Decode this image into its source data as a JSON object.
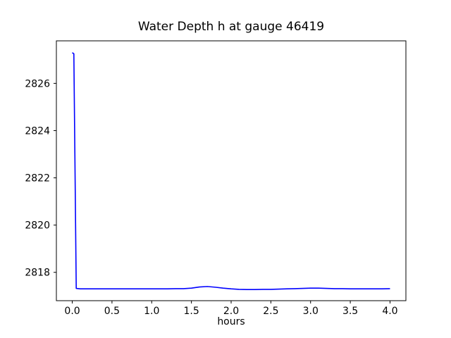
{
  "chart_data": {
    "type": "line",
    "title": "Water Depth h at gauge 46419",
    "xlabel": "hours",
    "ylabel": "",
    "xlim": [
      -0.2,
      4.2
    ],
    "ylim": [
      2816.8,
      2827.8
    ],
    "x_ticks": [
      0.0,
      0.5,
      1.0,
      1.5,
      2.0,
      2.5,
      3.0,
      3.5,
      4.0
    ],
    "x_tick_labels": [
      "0.0",
      "0.5",
      "1.0",
      "1.5",
      "2.0",
      "2.5",
      "3.0",
      "3.5",
      "4.0"
    ],
    "y_ticks": [
      2818,
      2820,
      2822,
      2824,
      2826
    ],
    "y_tick_labels": [
      "2818",
      "2820",
      "2822",
      "2824",
      "2826"
    ],
    "grid": false,
    "legend": "none",
    "line_color": "#0000ff",
    "frame_color": "#000000",
    "series": [
      {
        "name": "h",
        "x": [
          0.0,
          0.02,
          0.05,
          0.1,
          0.2,
          0.3,
          0.4,
          0.5,
          0.6,
          0.7,
          0.8,
          0.9,
          1.0,
          1.1,
          1.2,
          1.3,
          1.4,
          1.5,
          1.6,
          1.7,
          1.8,
          1.9,
          2.0,
          2.1,
          2.2,
          2.3,
          2.4,
          2.5,
          2.6,
          2.7,
          2.8,
          2.9,
          3.0,
          3.1,
          3.2,
          3.3,
          3.4,
          3.5,
          3.6,
          3.7,
          3.8,
          3.9,
          4.0
        ],
        "y": [
          2827.3,
          2827.25,
          2817.32,
          2817.3,
          2817.3,
          2817.3,
          2817.3,
          2817.3,
          2817.3,
          2817.3,
          2817.3,
          2817.3,
          2817.3,
          2817.3,
          2817.3,
          2817.31,
          2817.31,
          2817.33,
          2817.38,
          2817.4,
          2817.37,
          2817.33,
          2817.3,
          2817.28,
          2817.27,
          2817.27,
          2817.28,
          2817.28,
          2817.29,
          2817.3,
          2817.31,
          2817.32,
          2817.33,
          2817.33,
          2817.32,
          2817.31,
          2817.31,
          2817.3,
          2817.3,
          2817.3,
          2817.3,
          2817.3,
          2817.31
        ]
      }
    ]
  }
}
